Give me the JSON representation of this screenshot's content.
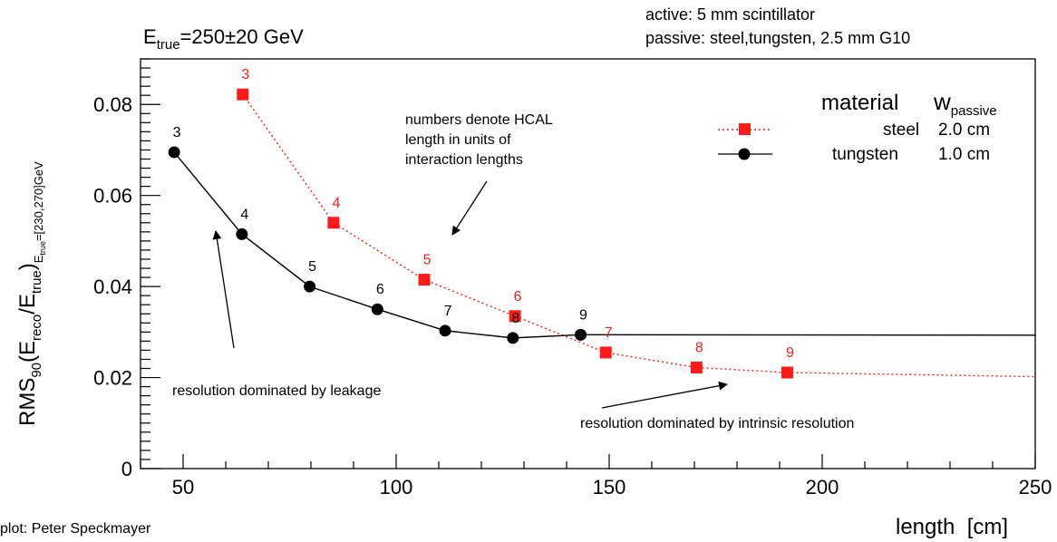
{
  "chart_data": {
    "type": "line",
    "title": "E",
    "title_sub": "true",
    "title_rest": "=250±20 GeV",
    "header_lines": [
      "active: 5 mm scintillator",
      "passive: steel,tungsten, 2.5 mm G10"
    ],
    "xlabel": "length  [cm]",
    "ylabel": {
      "p1": "RMS",
      "p1_sub": "90",
      "p2": "(E",
      "p2_sub": "reco",
      "p3": "/E",
      "p3_sub": "true",
      "p4": ")",
      "p4_sub": "E",
      "p4_subsub": "true",
      "p5_sub": "=[230,270]GeV"
    },
    "xlim": [
      40,
      250
    ],
    "ylim": [
      0,
      0.09
    ],
    "xticks": [
      50,
      100,
      150,
      200,
      250
    ],
    "yticks": [
      0,
      0.02,
      0.04,
      0.06,
      0.08
    ],
    "ytick_labels": [
      "0",
      "0.02",
      "0.04",
      "0.06",
      "0.08"
    ],
    "legend": {
      "position": "top-right",
      "header_a": "material",
      "header_b": "w",
      "header_b_sub": "passive",
      "rows": [
        {
          "material": "steel",
          "w": "2.0 cm"
        },
        {
          "material": "tungsten",
          "w": "1.0 cm"
        }
      ]
    },
    "series": [
      {
        "name": "steel",
        "color": "#ff1a1a",
        "marker": "square",
        "line": "dotted",
        "x": [
          64,
          85.3,
          106.6,
          127.9,
          149.2,
          170.5,
          191.8
        ],
        "y": [
          0.0822,
          0.054,
          0.0415,
          0.0335,
          0.0255,
          0.0222,
          0.0211
        ],
        "labels": [
          "3",
          "4",
          "5",
          "6",
          "7",
          "8",
          "9"
        ],
        "tail": {
          "x": [
            191.8,
            250
          ],
          "y": [
            0.0211,
            0.0202
          ]
        }
      },
      {
        "name": "tungsten",
        "color": "#000000",
        "marker": "circle",
        "line": "solid",
        "x": [
          47.9,
          63.8,
          79.7,
          95.6,
          111.5,
          127.4,
          143.3
        ],
        "y": [
          0.0695,
          0.0515,
          0.04,
          0.035,
          0.0303,
          0.0287,
          0.0294
        ],
        "labels": [
          "3",
          "4",
          "5",
          "6",
          "7",
          "8",
          "9"
        ],
        "tail": {
          "x": [
            143.3,
            250
          ],
          "y": [
            0.0294,
            0.0293
          ]
        }
      }
    ],
    "annotations": {
      "numbers_note": [
        "numbers denote HCAL",
        "length in units of",
        "interaction lengths"
      ],
      "leakage": "resolution dominated by leakage",
      "intrinsic": "resolution dominated by intrinsic resolution",
      "credit": "plot: Peter Speckmayer"
    }
  }
}
